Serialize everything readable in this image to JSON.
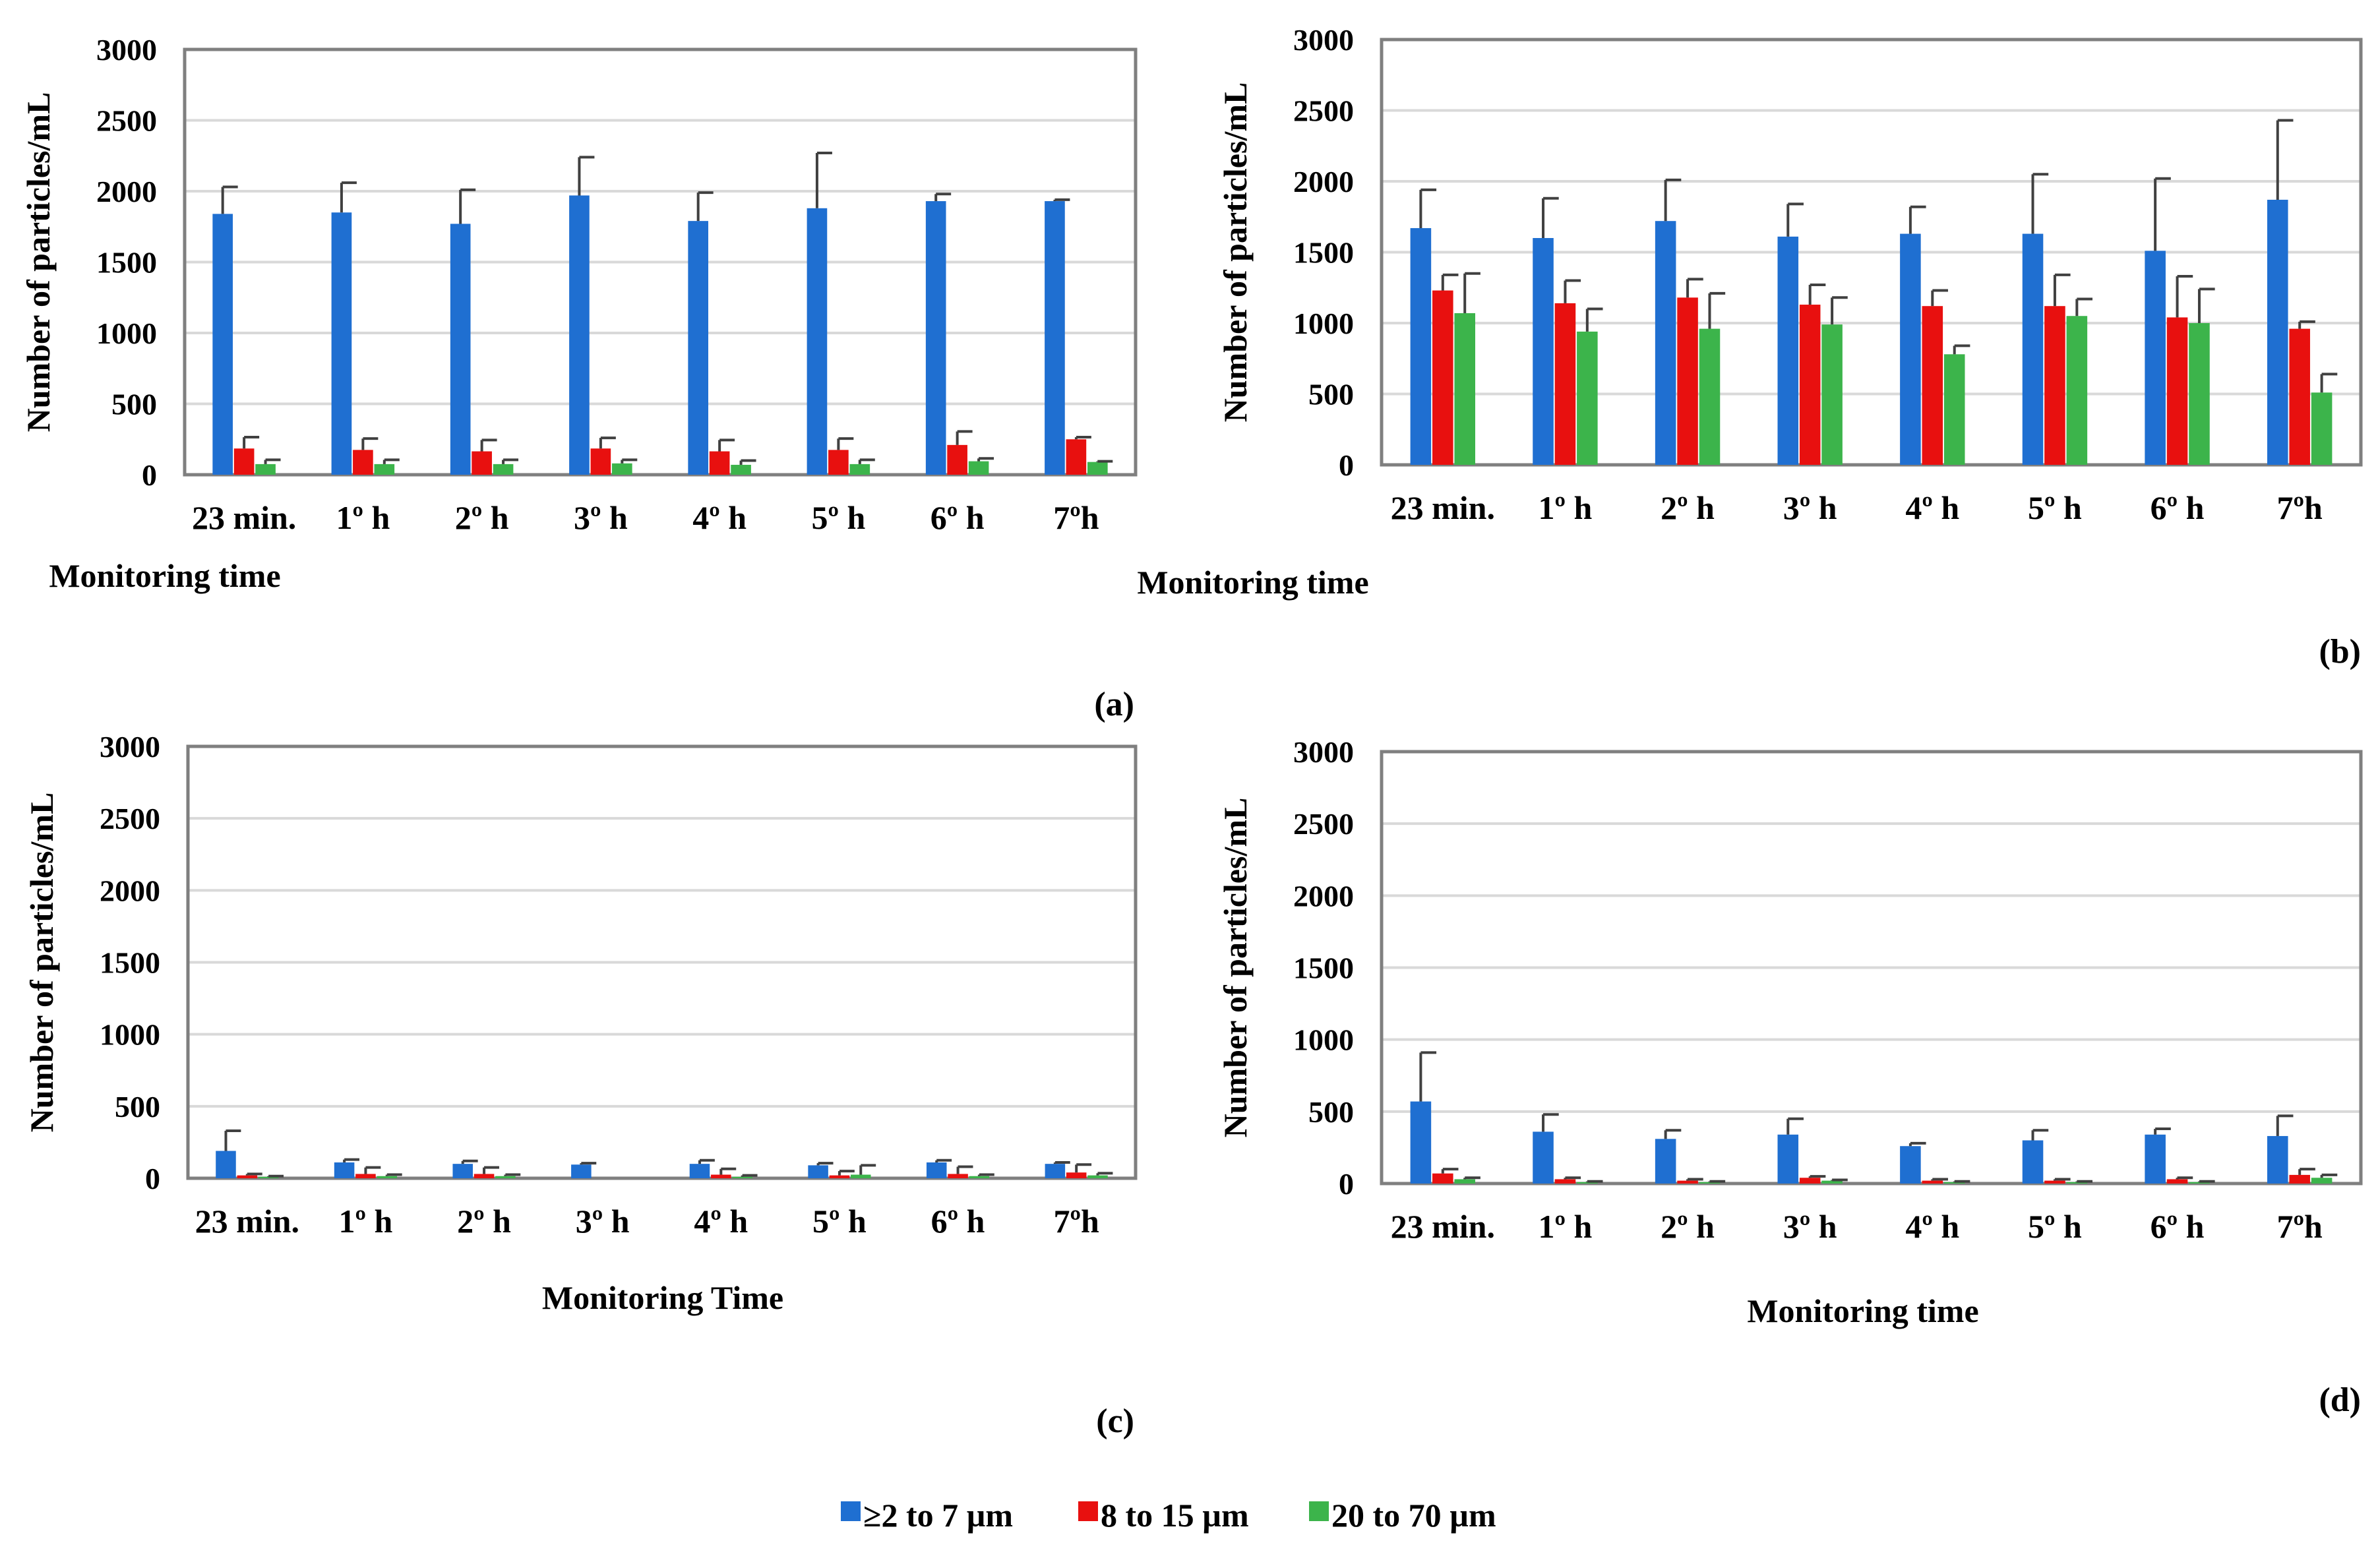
{
  "colors": {
    "series": [
      "#1f6fd1",
      "#e8100f",
      "#3cb44b"
    ],
    "frame": "#7f7f7f",
    "grid": "#d9d9d9",
    "error_bar": "#404040"
  },
  "legend": {
    "items": [
      "≥2 to 7 µm",
      "8 to 15 µm",
      "20 to 70 µm"
    ],
    "placement": "bottom-center"
  },
  "chart_data": [
    {
      "type": "bar",
      "panel_label": "(a)",
      "xlabel": "Monitoring time",
      "ylabel": "Number of particles/mL",
      "ylim": [
        0,
        3000
      ],
      "yticks": [
        0,
        500,
        1000,
        1500,
        2000,
        2500,
        3000
      ],
      "grid": true,
      "categories": [
        "23 min.",
        "1º h",
        "2º h",
        "3º h",
        "4º h",
        "5º h",
        "6º h",
        "7ºh"
      ],
      "series": [
        {
          "name": "≥2 to 7 µm",
          "values": [
            1840,
            1850,
            1770,
            1970,
            1790,
            1880,
            1930,
            1930
          ],
          "errors": [
            190,
            210,
            240,
            270,
            200,
            390,
            50,
            10
          ]
        },
        {
          "name": "8 to 15 µm",
          "values": [
            185,
            175,
            165,
            185,
            165,
            175,
            210,
            250
          ],
          "errors": [
            80,
            80,
            80,
            75,
            80,
            80,
            95,
            15
          ]
        },
        {
          "name": "20 to 70 µm",
          "values": [
            75,
            75,
            75,
            80,
            70,
            75,
            95,
            90
          ],
          "errors": [
            30,
            30,
            30,
            25,
            30,
            30,
            20,
            5
          ]
        }
      ]
    },
    {
      "type": "bar",
      "panel_label": "(b)",
      "xlabel": "Monitoring time",
      "ylabel": "Number of particles/mL",
      "ylim": [
        0,
        3000
      ],
      "yticks": [
        0,
        500,
        1000,
        1500,
        2000,
        2500,
        3000
      ],
      "grid": true,
      "categories": [
        "23 min.",
        "1º h",
        "2º h",
        "3º h",
        "4º h",
        "5º h",
        "6º h",
        "7ºh"
      ],
      "series": [
        {
          "name": "≥2 to 7 µm",
          "values": [
            1670,
            1600,
            1720,
            1610,
            1630,
            1630,
            1510,
            1870
          ],
          "errors": [
            270,
            280,
            290,
            230,
            190,
            420,
            510,
            560
          ]
        },
        {
          "name": "8 to 15 µm",
          "values": [
            1230,
            1140,
            1180,
            1130,
            1120,
            1120,
            1040,
            960
          ],
          "errors": [
            110,
            160,
            130,
            140,
            110,
            220,
            290,
            50
          ]
        },
        {
          "name": "20 to 70 µm",
          "values": [
            1070,
            940,
            960,
            990,
            780,
            1050,
            1000,
            510
          ],
          "errors": [
            280,
            160,
            250,
            190,
            60,
            120,
            240,
            130
          ]
        }
      ]
    },
    {
      "type": "bar",
      "panel_label": "(c)",
      "xlabel": "Monitoring Time",
      "ylabel": "Number of particles/mL",
      "ylim": [
        0,
        3000
      ],
      "yticks": [
        0,
        500,
        1000,
        1500,
        2000,
        2500,
        3000
      ],
      "grid": true,
      "categories": [
        "23 min.",
        "1º h",
        "2º h",
        "3º h",
        "4º h",
        "5º h",
        "6º h",
        "7ºh"
      ],
      "series": [
        {
          "name": "≥2 to 7 µm",
          "values": [
            190,
            110,
            100,
            95,
            100,
            90,
            110,
            100
          ],
          "errors": [
            140,
            20,
            20,
            10,
            25,
            15,
            15,
            10
          ]
        },
        {
          "name": "8 to 15 µm",
          "values": [
            20,
            30,
            30,
            0,
            25,
            20,
            30,
            40
          ],
          "errors": [
            10,
            45,
            45,
            0,
            40,
            30,
            50,
            55
          ]
        },
        {
          "name": "20 to 70 µm",
          "values": [
            10,
            15,
            15,
            0,
            10,
            25,
            15,
            20
          ],
          "errors": [
            5,
            10,
            10,
            0,
            10,
            65,
            10,
            15
          ]
        }
      ]
    },
    {
      "type": "bar",
      "panel_label": "(d)",
      "xlabel": "Monitoring time",
      "ylabel": "Number of particles/mL",
      "ylim": [
        0,
        3000
      ],
      "yticks": [
        0,
        500,
        1000,
        1500,
        2000,
        2500,
        3000
      ],
      "grid": true,
      "categories": [
        "23 min.",
        "1º h",
        "2º h",
        "3º h",
        "4º h",
        "5º h",
        "6º h",
        "7ºh"
      ],
      "series": [
        {
          "name": "≥2 to 7 µm",
          "values": [
            570,
            360,
            310,
            340,
            260,
            300,
            340,
            330
          ],
          "errors": [
            340,
            120,
            60,
            110,
            20,
            70,
            40,
            140
          ]
        },
        {
          "name": "8 to 15 µm",
          "values": [
            70,
            30,
            20,
            40,
            20,
            20,
            30,
            60
          ],
          "errors": [
            30,
            10,
            10,
            10,
            10,
            10,
            10,
            40
          ]
        },
        {
          "name": "20 to 70 µm",
          "values": [
            30,
            10,
            10,
            20,
            10,
            10,
            10,
            40
          ],
          "errors": [
            10,
            5,
            5,
            5,
            5,
            5,
            5,
            20
          ]
        }
      ]
    }
  ]
}
